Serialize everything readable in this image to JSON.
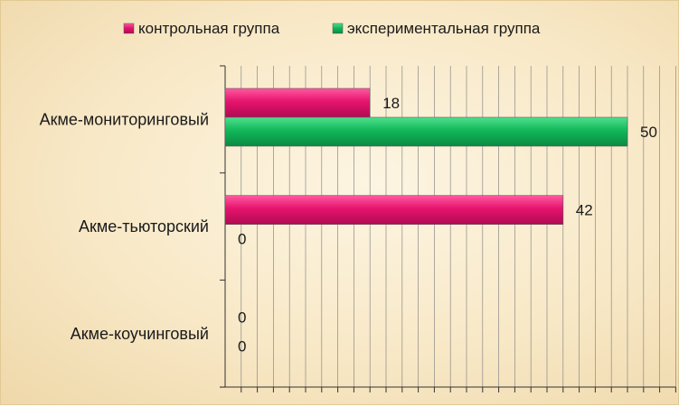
{
  "chart_data": {
    "type": "bar",
    "orientation": "horizontal",
    "categories": [
      "Акме-мониторинговый",
      "Акме-тьюторский",
      "Акме-коучинговый"
    ],
    "series": [
      {
        "name": "контрольная группа",
        "values": [
          18,
          42,
          0
        ],
        "color": "#e6146e"
      },
      {
        "name": "экспериментальная группа",
        "values": [
          50,
          0,
          0
        ],
        "color": "#12b85a"
      }
    ],
    "xlim": [
      0,
      56
    ],
    "x_minor_step": 2,
    "grid": true,
    "legend_position": "top",
    "data_labels": true
  }
}
